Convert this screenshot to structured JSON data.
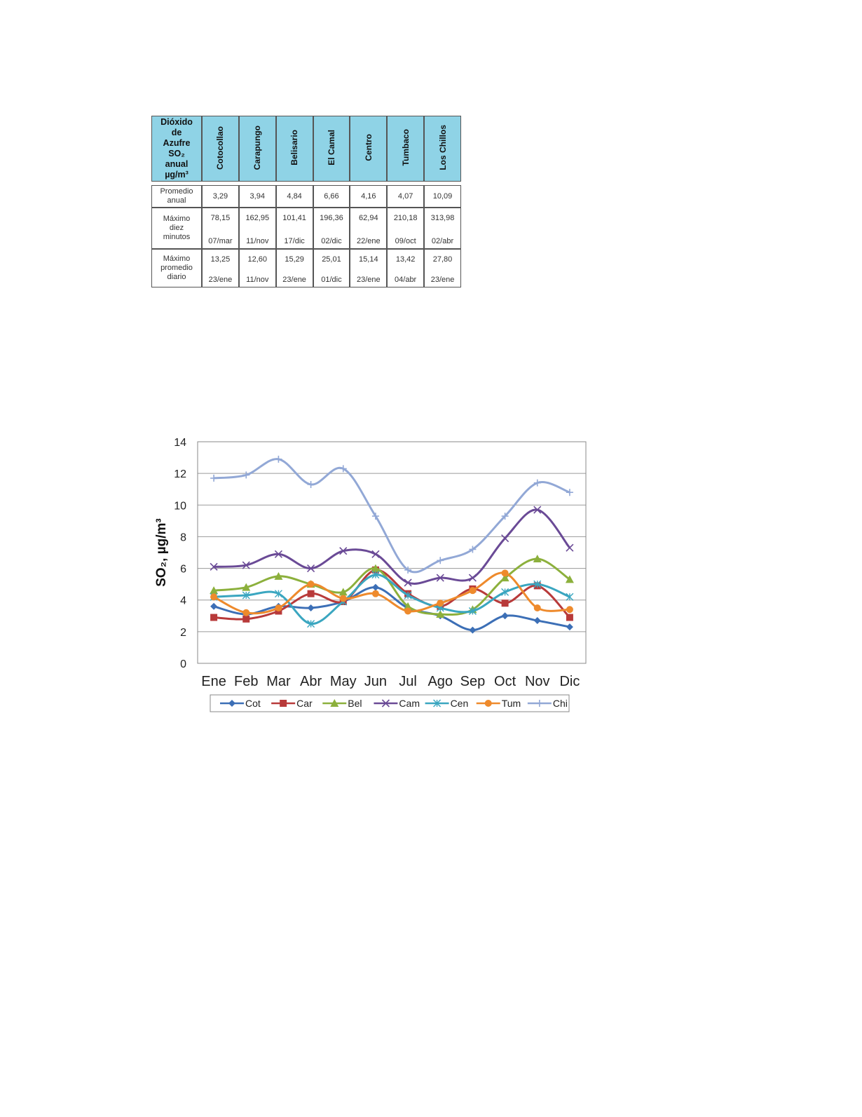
{
  "table": {
    "corner": [
      "Dióxido",
      "de",
      "Azufre",
      "SO₂",
      "anual",
      "µg/m³"
    ],
    "stations": [
      "Cotocollao",
      "Carapungo",
      "Belisario",
      "El Camal",
      "Centro",
      "Tumbaco",
      "Los Chillos"
    ],
    "rows": [
      {
        "label": [
          "Promedio",
          "anual"
        ],
        "values": [
          "3,29",
          "3,94",
          "4,84",
          "6,66",
          "4,16",
          "4,07",
          "10,09"
        ],
        "dates": []
      },
      {
        "label": [
          "Máximo",
          "diez",
          "minutos"
        ],
        "values": [
          "78,15",
          "162,95",
          "101,41",
          "196,36",
          "62,94",
          "210,18",
          "313,98"
        ],
        "dates": [
          "07/mar",
          "11/nov",
          "17/dic",
          "02/dic",
          "22/ene",
          "09/oct",
          "02/abr"
        ]
      },
      {
        "label": [
          "Máximo",
          "promedio",
          "diario"
        ],
        "values": [
          "13,25",
          "12,60",
          "15,29",
          "25,01",
          "15,14",
          "13,42",
          "27,80"
        ],
        "dates": [
          "23/ene",
          "11/nov",
          "23/ene",
          "01/dic",
          "23/ene",
          "04/abr",
          "23/ene"
        ]
      }
    ]
  },
  "chart_data": {
    "type": "line",
    "ylabel": "SO₂, µg/m³",
    "ylim": [
      0,
      14
    ],
    "yticks": [
      0,
      2,
      4,
      6,
      8,
      10,
      12,
      14
    ],
    "grid": true,
    "legend_position": "bottom",
    "categories": [
      "Ene",
      "Feb",
      "Mar",
      "Abr",
      "May",
      "Jun",
      "Jul",
      "Ago",
      "Sep",
      "Oct",
      "Nov",
      "Dic"
    ],
    "series": [
      {
        "name": "Cot",
        "color": "#3c6fb6",
        "marker": "diamond",
        "values": [
          3.6,
          3.1,
          3.6,
          3.5,
          3.9,
          4.8,
          3.5,
          3.0,
          2.1,
          3.0,
          2.7,
          2.3
        ]
      },
      {
        "name": "Car",
        "color": "#b83a3a",
        "marker": "square",
        "values": [
          2.9,
          2.8,
          3.3,
          4.4,
          3.9,
          5.9,
          4.4,
          3.6,
          4.7,
          3.8,
          4.9,
          2.9
        ]
      },
      {
        "name": "Bel",
        "color": "#8cb03c",
        "marker": "triangle",
        "values": [
          4.6,
          4.8,
          5.5,
          5.0,
          4.5,
          6.0,
          3.6,
          3.1,
          3.4,
          5.4,
          6.6,
          5.3
        ]
      },
      {
        "name": "Cam",
        "color": "#6a4a96",
        "marker": "x",
        "values": [
          6.1,
          6.2,
          6.9,
          6.0,
          7.1,
          6.9,
          5.1,
          5.4,
          5.4,
          7.9,
          9.7,
          7.3
        ]
      },
      {
        "name": "Cen",
        "color": "#3aa6c0",
        "marker": "star",
        "values": [
          4.2,
          4.3,
          4.4,
          2.5,
          3.9,
          5.6,
          4.3,
          3.5,
          3.3,
          4.5,
          5.0,
          4.2
        ]
      },
      {
        "name": "Tum",
        "color": "#ee8a2c",
        "marker": "circle",
        "values": [
          4.2,
          3.2,
          3.5,
          5.0,
          4.1,
          4.4,
          3.3,
          3.8,
          4.6,
          5.7,
          3.5,
          3.4
        ]
      },
      {
        "name": "Chi",
        "color": "#92a8d6",
        "marker": "plus",
        "values": [
          11.7,
          11.9,
          12.9,
          11.3,
          12.3,
          9.3,
          5.9,
          6.5,
          7.2,
          9.3,
          11.4,
          10.8
        ]
      }
    ]
  }
}
